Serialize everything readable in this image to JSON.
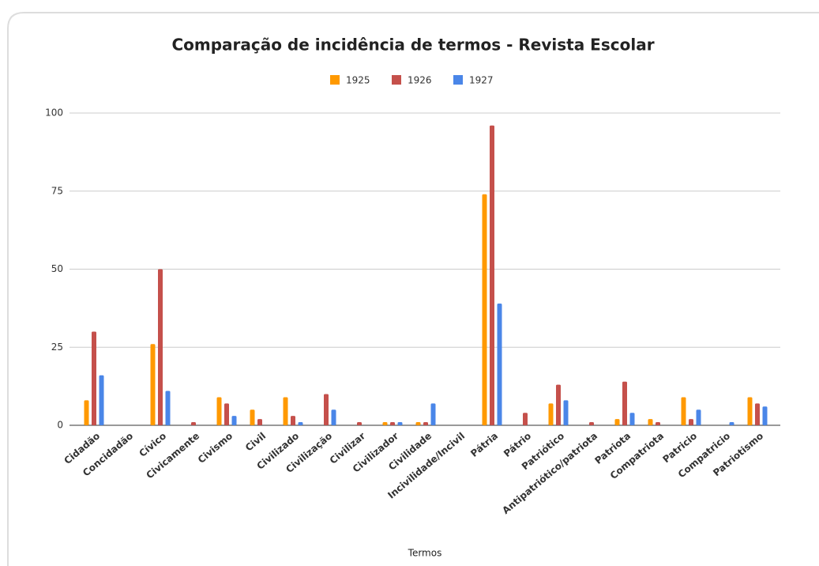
{
  "chart_data": {
    "type": "bar",
    "title": "Comparação de incidência de termos - Revista Escolar",
    "x_label": "Termos",
    "categories": [
      "Cidadão",
      "Concidadão",
      "Cívico",
      "Civicamente",
      "Civismo",
      "Civil",
      "Civilizado",
      "Civilização",
      "Civilizar",
      "Civilizador",
      "Civilidade",
      "Incivilidade/Incivil",
      "Pátria",
      "Pátrio",
      "Patriótico",
      "Antipatriótico/patriota",
      "Patriota",
      "Compatriota",
      "Patricio",
      "Compatricio",
      "Patriotismo"
    ],
    "series": [
      {
        "name": "1925",
        "color": "#ff9900",
        "values": [
          8,
          0,
          26,
          0,
          9,
          5,
          9,
          0,
          0,
          1,
          1,
          0,
          74,
          0,
          7,
          0,
          2,
          2,
          9,
          0,
          9
        ]
      },
      {
        "name": "1926",
        "color": "#c5504b",
        "values": [
          30,
          0,
          50,
          1,
          7,
          2,
          3,
          10,
          1,
          1,
          1,
          0,
          96,
          4,
          13,
          1,
          14,
          1,
          2,
          0,
          7
        ]
      },
      {
        "name": "1927",
        "color": "#4a86e8",
        "values": [
          16,
          0,
          11,
          0,
          3,
          0,
          1,
          5,
          0,
          1,
          7,
          0,
          39,
          0,
          8,
          0,
          4,
          0,
          5,
          1,
          6
        ]
      }
    ],
    "ylim": [
      0,
      100
    ],
    "yticks": [
      0,
      25,
      50,
      75,
      100
    ],
    "grid": true,
    "legend": "top"
  }
}
